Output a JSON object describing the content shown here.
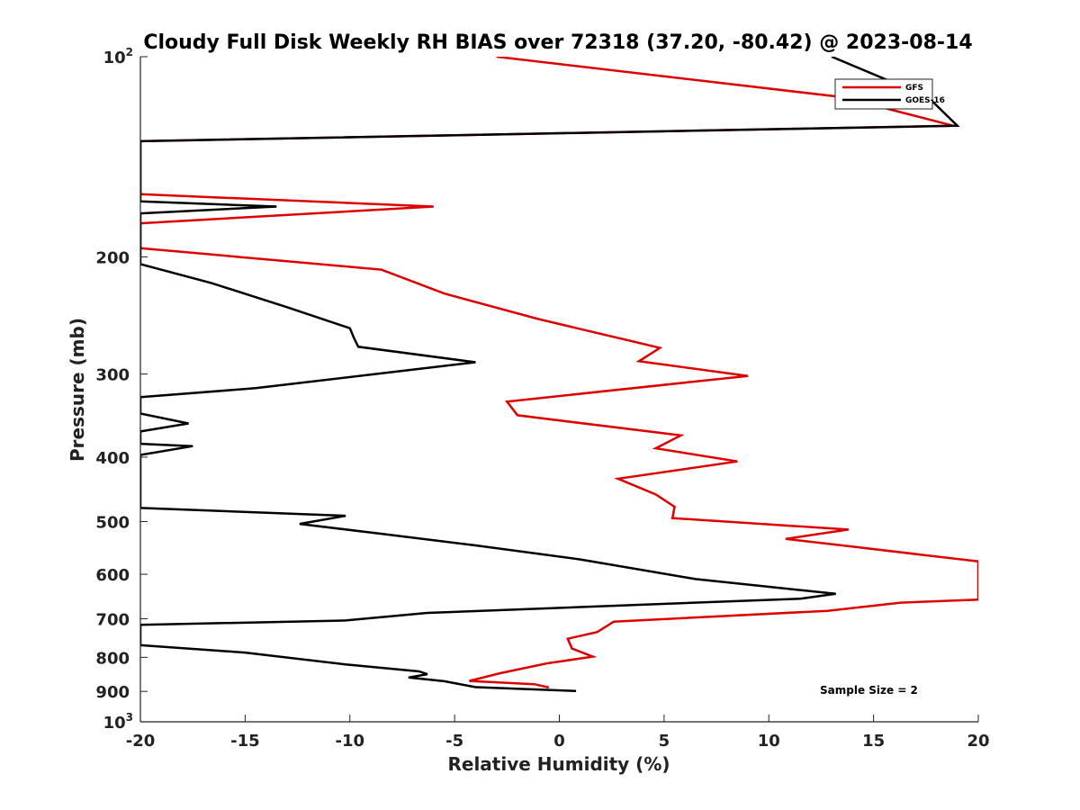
{
  "chart_data": {
    "type": "line",
    "title": "Cloudy Full Disk Weekly RH BIAS over 72318 (37.20, -80.42) @ 2023-08-14",
    "xlabel": "Relative Humidity (%)",
    "ylabel": "Pressure (mb)",
    "xlim": [
      -20,
      20
    ],
    "ylim": [
      100,
      1000
    ],
    "yscale": "log",
    "yreversed": true,
    "xticks": [
      -20,
      -15,
      -10,
      -5,
      0,
      5,
      10,
      15,
      20
    ],
    "yticks": [
      {
        "value": 100,
        "label": "10",
        "sup": "2"
      },
      {
        "value": 200,
        "label": "200",
        "sup": ""
      },
      {
        "value": 300,
        "label": "300",
        "sup": ""
      },
      {
        "value": 400,
        "label": "400",
        "sup": ""
      },
      {
        "value": 500,
        "label": "500",
        "sup": ""
      },
      {
        "value": 600,
        "label": "600",
        "sup": ""
      },
      {
        "value": 700,
        "label": "700",
        "sup": ""
      },
      {
        "value": 800,
        "label": "800",
        "sup": ""
      },
      {
        "value": 900,
        "label": "900",
        "sup": ""
      },
      {
        "value": 1000,
        "label": "10",
        "sup": "3"
      }
    ],
    "legend": {
      "placement": "top-right"
    },
    "annotation": "Sample Size = 2",
    "series": [
      {
        "name": "GFS",
        "color": "#dd0000",
        "points": [
          [
            -3.0,
            100
          ],
          [
            13.5,
            115
          ],
          [
            18.8,
            127
          ],
          [
            -20.0,
            134
          ],
          [
            -20.0,
            161
          ],
          [
            -6.0,
            168
          ],
          [
            -20.0,
            178
          ],
          [
            -20.0,
            194
          ],
          [
            -8.5,
            209
          ],
          [
            -5.5,
            227
          ],
          [
            -1.0,
            248
          ],
          [
            4.8,
            274
          ],
          [
            3.8,
            287
          ],
          [
            9.0,
            302
          ],
          [
            -2.5,
            330
          ],
          [
            -2.0,
            346
          ],
          [
            5.8,
            371
          ],
          [
            4.6,
            388
          ],
          [
            8.5,
            406
          ],
          [
            2.8,
            431
          ],
          [
            4.6,
            455
          ],
          [
            5.5,
            475
          ],
          [
            5.4,
            494
          ],
          [
            13.8,
            514
          ],
          [
            10.8,
            531
          ],
          [
            13.5,
            543
          ],
          [
            20.0,
            574
          ],
          [
            20.0,
            655
          ],
          [
            16.3,
            662
          ],
          [
            12.8,
            681
          ],
          [
            2.6,
            707
          ],
          [
            1.8,
            733
          ],
          [
            0.4,
            750
          ],
          [
            0.6,
            776
          ],
          [
            1.6,
            798
          ],
          [
            -0.6,
            817
          ],
          [
            -2.8,
            845
          ],
          [
            -4.3,
            868
          ],
          [
            -1.2,
            878
          ],
          [
            -0.5,
            888
          ]
        ]
      },
      {
        "name": "GOES-16",
        "color": "#000000",
        "points": [
          [
            13.0,
            100
          ],
          [
            17.6,
            115
          ],
          [
            19.0,
            127
          ],
          [
            -20.0,
            134
          ],
          [
            -20.0,
            165
          ],
          [
            -13.5,
            168
          ],
          [
            -20.0,
            172
          ],
          [
            -20.0,
            205
          ],
          [
            -16.6,
            219
          ],
          [
            -13.0,
            238
          ],
          [
            -10.0,
            256
          ],
          [
            -9.8,
            265
          ],
          [
            -9.6,
            273
          ],
          [
            -4.0,
            288
          ],
          [
            -7.2,
            296
          ],
          [
            -14.5,
            315
          ],
          [
            -20.0,
            325
          ],
          [
            -20.0,
            344
          ],
          [
            -17.7,
            356
          ],
          [
            -20.0,
            366
          ],
          [
            -20.0,
            382
          ],
          [
            -17.5,
            385
          ],
          [
            -20.0,
            397
          ],
          [
            -20.0,
            477
          ],
          [
            -10.2,
            490
          ],
          [
            -12.4,
            504
          ],
          [
            -8.4,
            522
          ],
          [
            -4.0,
            543
          ],
          [
            1.0,
            570
          ],
          [
            6.5,
            610
          ],
          [
            13.2,
            642
          ],
          [
            11.5,
            653
          ],
          [
            -6.3,
            686
          ],
          [
            -10.2,
            704
          ],
          [
            -20.0,
            715
          ],
          [
            -20.0,
            767
          ],
          [
            -15.0,
            787
          ],
          [
            -10.2,
            820
          ],
          [
            -6.7,
            840
          ],
          [
            -6.3,
            848
          ],
          [
            -7.2,
            858
          ],
          [
            -5.5,
            869
          ],
          [
            -4.0,
            887
          ],
          [
            0.8,
            899
          ]
        ]
      }
    ]
  }
}
